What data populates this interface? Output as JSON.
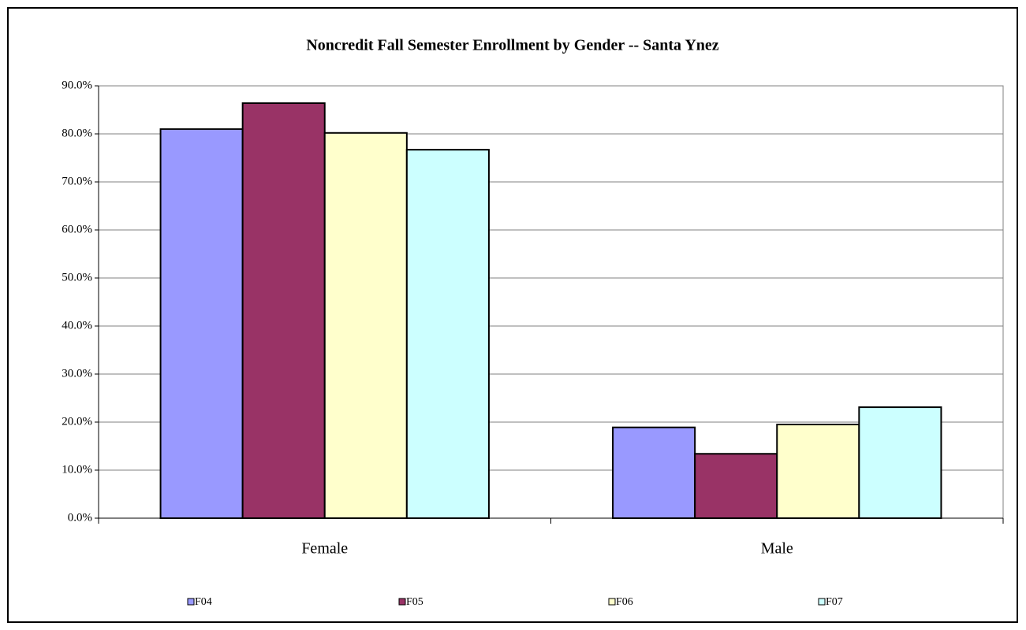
{
  "chart_data": {
    "type": "bar",
    "title": "Noncredit Fall Semester Enrollment by Gender -- Santa Ynez",
    "categories": [
      "Female",
      "Male"
    ],
    "series": [
      {
        "name": "F04",
        "color": "#9999ff",
        "values": [
          81.0,
          18.9
        ]
      },
      {
        "name": "F05",
        "color": "#993366",
        "values": [
          86.4,
          13.4
        ]
      },
      {
        "name": "F06",
        "color": "#ffffcc",
        "values": [
          80.2,
          19.5
        ]
      },
      {
        "name": "F07",
        "color": "#ccffff",
        "values": [
          76.7,
          23.1
        ]
      }
    ],
    "ylim": [
      0,
      90
    ],
    "yticks": [
      {
        "value": 0,
        "label": "0.0%"
      },
      {
        "value": 10,
        "label": "10.0%"
      },
      {
        "value": 20,
        "label": "20.0%"
      },
      {
        "value": 30,
        "label": "30.0%"
      },
      {
        "value": 40,
        "label": "40.0%"
      },
      {
        "value": 50,
        "label": "50.0%"
      },
      {
        "value": 60,
        "label": "60.0%"
      },
      {
        "value": 70,
        "label": "70.0%"
      },
      {
        "value": 80,
        "label": "80.0%"
      },
      {
        "value": 90,
        "label": "90.0%"
      }
    ],
    "grid": true,
    "legend": "bottom"
  }
}
